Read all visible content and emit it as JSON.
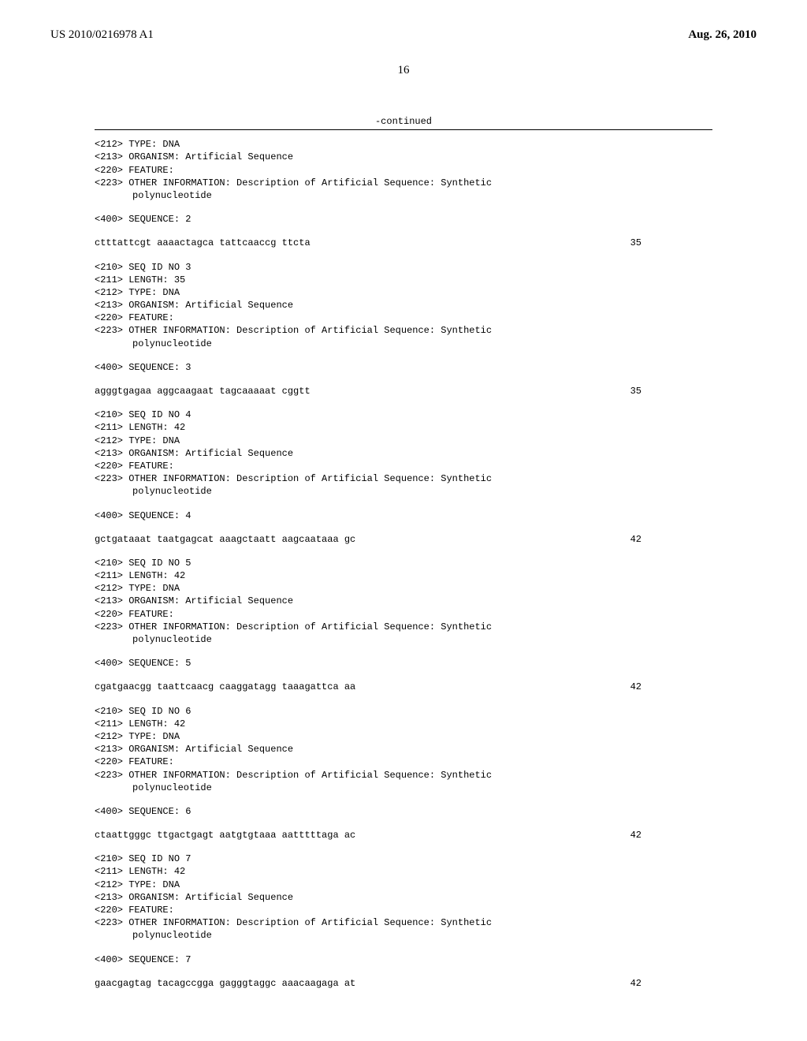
{
  "header": {
    "pub_number": "US 2010/0216978 A1",
    "pub_date": "Aug. 26, 2010"
  },
  "page_number": "16",
  "continued_label": "-continued",
  "seq_intro": {
    "lines": [
      "<212> TYPE: DNA",
      "<213> ORGANISM: Artificial Sequence",
      "<220> FEATURE:",
      "<223> OTHER INFORMATION: Description of Artificial Sequence: Synthetic"
    ],
    "indent_line": "polynucleotide",
    "seq_label": "<400> SEQUENCE: 2",
    "seq_text": "ctttattcgt aaaactagca tattcaaccg ttcta",
    "seq_len": "35"
  },
  "entries": [
    {
      "id_lines": [
        "<210> SEQ ID NO 3",
        "<211> LENGTH: 35",
        "<212> TYPE: DNA",
        "<213> ORGANISM: Artificial Sequence",
        "<220> FEATURE:",
        "<223> OTHER INFORMATION: Description of Artificial Sequence: Synthetic"
      ],
      "indent_line": "polynucleotide",
      "seq_label": "<400> SEQUENCE: 3",
      "seq_text": "agggtgagaa aggcaagaat tagcaaaaat cggtt",
      "seq_len": "35"
    },
    {
      "id_lines": [
        "<210> SEQ ID NO 4",
        "<211> LENGTH: 42",
        "<212> TYPE: DNA",
        "<213> ORGANISM: Artificial Sequence",
        "<220> FEATURE:",
        "<223> OTHER INFORMATION: Description of Artificial Sequence: Synthetic"
      ],
      "indent_line": "polynucleotide",
      "seq_label": "<400> SEQUENCE: 4",
      "seq_text": "gctgataaat taatgagcat aaagctaatt aagcaataaa gc",
      "seq_len": "42"
    },
    {
      "id_lines": [
        "<210> SEQ ID NO 5",
        "<211> LENGTH: 42",
        "<212> TYPE: DNA",
        "<213> ORGANISM: Artificial Sequence",
        "<220> FEATURE:",
        "<223> OTHER INFORMATION: Description of Artificial Sequence: Synthetic"
      ],
      "indent_line": "polynucleotide",
      "seq_label": "<400> SEQUENCE: 5",
      "seq_text": "cgatgaacgg taattcaacg caaggatagg taaagattca aa",
      "seq_len": "42"
    },
    {
      "id_lines": [
        "<210> SEQ ID NO 6",
        "<211> LENGTH: 42",
        "<212> TYPE: DNA",
        "<213> ORGANISM: Artificial Sequence",
        "<220> FEATURE:",
        "<223> OTHER INFORMATION: Description of Artificial Sequence: Synthetic"
      ],
      "indent_line": "polynucleotide",
      "seq_label": "<400> SEQUENCE: 6",
      "seq_text": "ctaattgggc ttgactgagt aatgtgtaaa aatttttaga ac",
      "seq_len": "42"
    },
    {
      "id_lines": [
        "<210> SEQ ID NO 7",
        "<211> LENGTH: 42",
        "<212> TYPE: DNA",
        "<213> ORGANISM: Artificial Sequence",
        "<220> FEATURE:",
        "<223> OTHER INFORMATION: Description of Artificial Sequence: Synthetic"
      ],
      "indent_line": "polynucleotide",
      "seq_label": "<400> SEQUENCE: 7",
      "seq_text": "gaacgagtag tacagccgga gagggtaggc aaacaagaga at",
      "seq_len": "42"
    }
  ]
}
